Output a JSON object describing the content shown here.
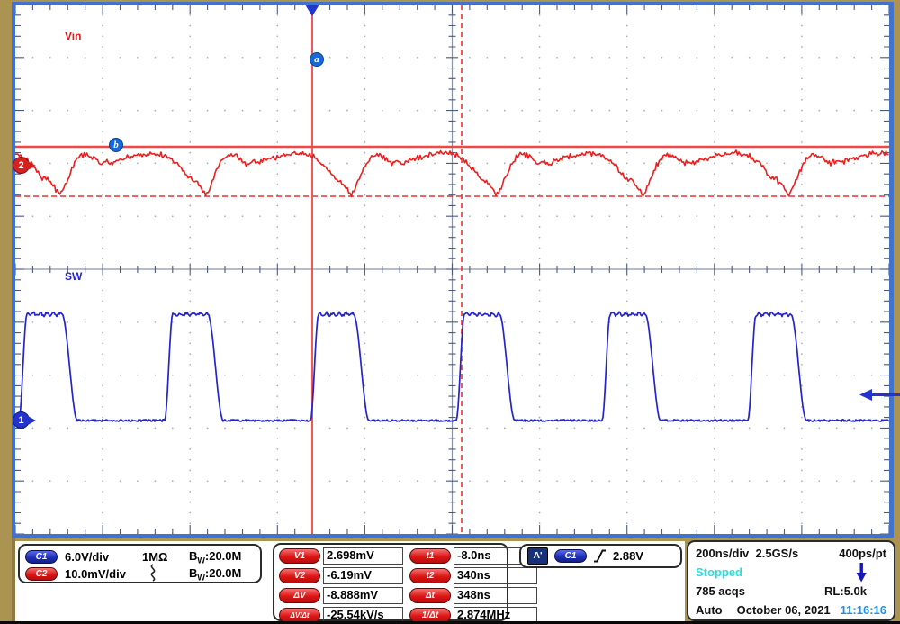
{
  "scope": {
    "plot": {
      "vin_label": "Vin",
      "sw_label": "SW",
      "cursor_a_label": "a",
      "cursor_b_label": "b",
      "channel1_marker": "1",
      "channel2_marker": "2"
    },
    "channels_box": {
      "ch1": {
        "badge": "C1",
        "scale": "6.0V/div",
        "termination": "1MΩ",
        "bw_b": "B",
        "bw_w": "W",
        "bw_value": ":20.0M"
      },
      "ch2": {
        "badge": "C2",
        "scale": "10.0mV/div",
        "coupling_icon": "ac-coupling",
        "bw_b": "B",
        "bw_w": "W",
        "bw_value": ":20.0M"
      }
    },
    "cursor_box": {
      "voltage": [
        {
          "label": "V1",
          "value": "2.698mV"
        },
        {
          "label": "V2",
          "value": "-6.19mV"
        },
        {
          "label": "ΔV",
          "value": "-8.888mV"
        },
        {
          "label": "ΔV/Δt",
          "value": "-25.54kV/s"
        }
      ],
      "time": [
        {
          "label": "t1",
          "value": "-8.0ns"
        },
        {
          "label": "t2",
          "value": "340ns"
        },
        {
          "label": "Δt",
          "value": "348ns"
        },
        {
          "label": "1/Δt",
          "value": "2.874MHz"
        }
      ]
    },
    "trigger_box": {
      "mode_badge": "A'",
      "source_badge": "C1",
      "slope_icon": "rising-edge",
      "level": "2.88V"
    },
    "horizontal_box": {
      "timebase": "200ns/div",
      "sample_rate": "2.5GS/s",
      "resolution": "400ps/pt",
      "status": "Stopped",
      "acqs": "785 acqs",
      "record_length": "RL:5.0k",
      "mode": "Auto",
      "date": "October 06, 2021",
      "clock": "11:16:16"
    }
  },
  "colors": {
    "background_tan": "#ab9352",
    "frame_blue": "#4273cc",
    "trace_blue": "#2424cc",
    "trace_red": "#ee1c1c",
    "cursor_red": "#f24646",
    "status_cyan": "#2adede",
    "clock_blue": "#1f8fe8"
  },
  "chart_data": {
    "type": "line",
    "title": "Switching converter: SW node (C1) and Vin ripple (C2)",
    "x_axis": {
      "scale": "200ns/div",
      "divisions": 10,
      "sample_rate": "2.5GS/s",
      "resolution": "400ps/pt"
    },
    "y_axis": {
      "divisions": 10,
      "c1_scale": "6.0V/div",
      "c2_scale": "10.0mV/div"
    },
    "grid": "dotted",
    "series": [
      {
        "name": "SW",
        "channel": "C1",
        "color": "#2424cc",
        "waveform": "square",
        "period_ns": 348,
        "frequency_MHz": 2.874,
        "duty_cycle": 0.29,
        "low_level_V": 0,
        "high_level_V": 12
      },
      {
        "name": "Vin",
        "channel": "C2",
        "color": "#ee1c1c",
        "waveform": "ripple",
        "period_ns": 348,
        "peak_to_peak_mV": 8.9
      }
    ],
    "cursors": {
      "t1_ns": -8.0,
      "t2_ns": 340,
      "dt_ns": 348,
      "one_over_dt_MHz": 2.874,
      "v1_mV": 2.698,
      "v2_mV": -6.19,
      "dv_mV": -8.888,
      "dv_dt": "-25.54kV/s"
    },
    "trigger": {
      "source": "C1",
      "level_V": 2.88,
      "slope": "rising"
    },
    "acquisition": {
      "status": "Stopped",
      "count": 785,
      "record_length": 5000,
      "mode": "Auto"
    }
  }
}
